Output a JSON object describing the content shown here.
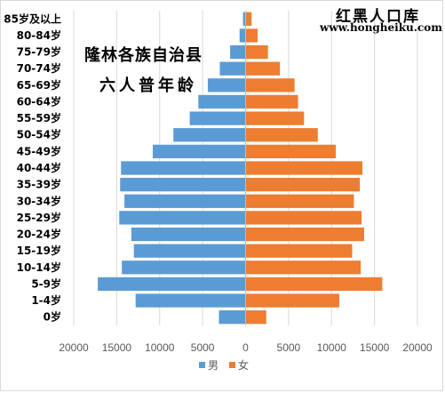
{
  "watermark": {
    "title": "红黑人口库",
    "url": "www.hongheiku.com"
  },
  "title_lines": [
    "隆林各族自治县",
    "六人普年龄"
  ],
  "colors": {
    "male": "#5B9BD5",
    "female": "#ED7D31",
    "axis_text": "#595959",
    "grid": "#d9d9d9"
  },
  "chart_data": {
    "type": "bar",
    "orientation": "horizontal",
    "title": "隆林各族自治县 六人普年龄",
    "categories": [
      "85岁及以上",
      "80-84岁",
      "75-79岁",
      "70-74岁",
      "65-69岁",
      "60-64岁",
      "55-59岁",
      "50-54岁",
      "45-49岁",
      "40-44岁",
      "35-39岁",
      "30-34岁",
      "25-29岁",
      "20-24岁",
      "15-19岁",
      "10-14岁",
      "5-9岁",
      "1-4岁",
      "0岁"
    ],
    "series": [
      {
        "name": "男",
        "values": [
          300,
          700,
          1800,
          3000,
          4400,
          5500,
          6500,
          8400,
          10800,
          14500,
          14600,
          14100,
          14700,
          13300,
          13000,
          14400,
          17200,
          12800,
          3100
        ]
      },
      {
        "name": "女",
        "values": [
          700,
          1400,
          2600,
          4000,
          5700,
          6100,
          6800,
          8400,
          10500,
          13600,
          13300,
          12600,
          13500,
          13800,
          12400,
          13400,
          15900,
          10900,
          2400
        ]
      }
    ],
    "xlim": [
      -20000,
      20000
    ],
    "xticks": [
      -20000,
      -15000,
      -10000,
      -5000,
      0,
      5000,
      10000,
      15000,
      20000
    ],
    "xtick_labels": [
      "20000",
      "15000",
      "10000",
      "5000",
      "0",
      "5000",
      "10000",
      "15000",
      "20000"
    ],
    "legend": [
      "男",
      "女"
    ],
    "legend_position": "bottom",
    "grid": true
  }
}
